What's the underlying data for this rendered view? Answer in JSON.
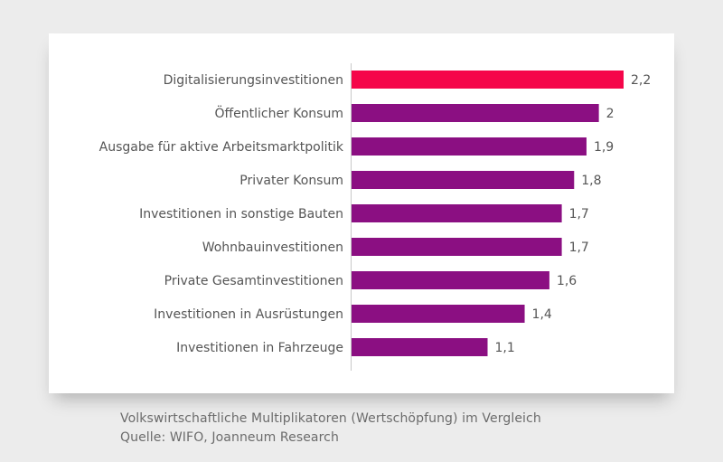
{
  "chart_data": {
    "type": "bar",
    "orientation": "horizontal",
    "categories": [
      "Digitalisierungsinvestitionen",
      "Öffentlicher Konsum",
      "Ausgabe für aktive Arbeitsmarktpolitik",
      "Privater Konsum",
      "Investitionen in sonstige Bauten",
      "Wohnbauinvestitionen",
      "Private Gesamtinvestitionen",
      "Investitionen in Ausrüstungen",
      "Investitionen in Fahrzeuge"
    ],
    "values": [
      2.2,
      2,
      1.9,
      1.8,
      1.7,
      1.7,
      1.6,
      1.4,
      1.1
    ],
    "value_labels": [
      "2,2",
      "2",
      "1,9",
      "1,8",
      "1,7",
      "1,7",
      "1,6",
      "1,4",
      "1,1"
    ],
    "highlight_index": 0,
    "colors": {
      "highlight": "#f5064a",
      "bar": "#8b0f82",
      "axis": "#c8c8c8",
      "text": "#555555"
    },
    "xlim": [
      0,
      2.2
    ],
    "grid": false,
    "legend": "none"
  },
  "caption": {
    "line1": "Volkswirtschaftliche Multiplikatoren (Wertschöpfung) im Vergleich",
    "line2": "Quelle: WIFO, Joanneum Research"
  }
}
